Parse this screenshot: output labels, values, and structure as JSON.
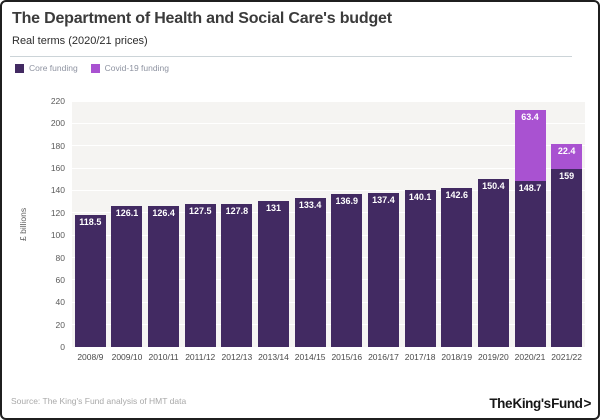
{
  "header": {
    "title": "The Department of Health and Social Care's budget",
    "subtitle": "Real terms (2020/21 prices)"
  },
  "chart_data": {
    "type": "bar",
    "stacked": true,
    "categories": [
      "2008/9",
      "2009/10",
      "2010/11",
      "2011/12",
      "2012/13",
      "2013/14",
      "2014/15",
      "2015/16",
      "2016/17",
      "2017/18",
      "2018/19",
      "2019/20",
      "2020/21",
      "2021/22"
    ],
    "series": [
      {
        "name": "Core funding",
        "color": "#422a62",
        "values": [
          118.5,
          126.1,
          126.4,
          127.5,
          127.8,
          131,
          133.4,
          136.9,
          137.4,
          140.1,
          142.6,
          150.4,
          148.7,
          159
        ]
      },
      {
        "name": "Covid-19 funding",
        "color": "#a952d1",
        "values": [
          0,
          0,
          0,
          0,
          0,
          0,
          0,
          0,
          0,
          0,
          0,
          0,
          63.4,
          22.4
        ]
      }
    ],
    "title": "The Department of Health and Social Care's budget",
    "xlabel": "",
    "ylabel": "£ billions",
    "ylim": [
      0,
      220
    ],
    "ytick_step": 20,
    "grid": true,
    "gridline_color": "#ffffff",
    "plot_background": "#f5f4f2",
    "legend_position": "top-left",
    "value_labels": true
  },
  "footer": {
    "source": "Source: The King's Fund analysis of HMT data",
    "logo_text": "The King's Fund",
    "logo_chevron": ">"
  }
}
